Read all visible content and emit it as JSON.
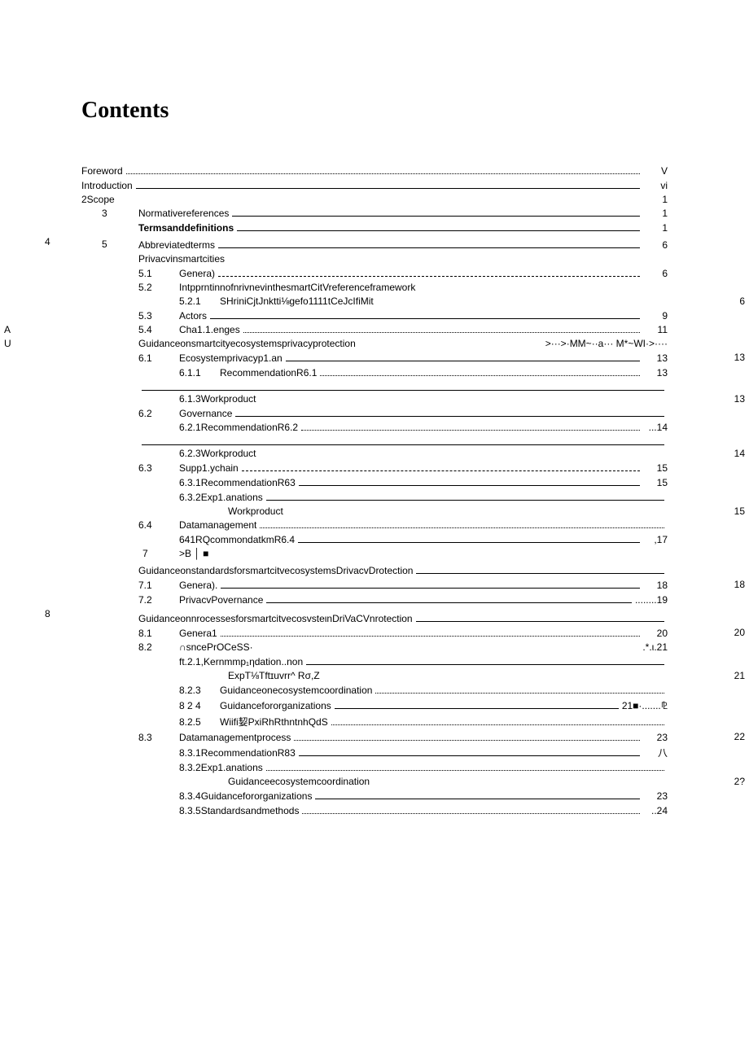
{
  "title": "Contents",
  "lines": [
    {
      "label": "Foreword",
      "leader": "dots",
      "page": "V",
      "indent": 0,
      "leftCol": ""
    },
    {
      "label": "Introduction",
      "leader": "underscore",
      "page": "vi",
      "indent": 0,
      "leftCol": ""
    },
    {
      "label": "2Scope",
      "leader": "none",
      "page": "1",
      "indent": 0,
      "leftCol": ""
    },
    {
      "leftNum": "3",
      "label": "Normativereferences",
      "leader": "underscore",
      "page": "1",
      "indent": 1
    },
    {
      "leftNum": "",
      "label": "Termsanddefinitions",
      "leader": "underscore",
      "page": "1",
      "indent": 1,
      "bold": true
    },
    {
      "leftNum": "4",
      "label": "",
      "leader": "none",
      "page": "",
      "indent": 0
    },
    {
      "leftNum": "5",
      "label": "Abbreviatedterms",
      "leader": "underscore",
      "page": "6",
      "indent": 1
    },
    {
      "leftNum": "",
      "label": "Privacvinsmartcities",
      "leader": "none",
      "page": "",
      "indent": 1
    },
    {
      "leftNum": "",
      "sec": "5.1",
      "label": "Genera)",
      "leader": "dash",
      "page": "6",
      "indent": 2
    },
    {
      "leftNum": "",
      "sec": "5.2",
      "label": "IntpprntinnofnrivnevinthesmartCitVreferenceframework",
      "leader": "none",
      "page": "",
      "indent": 2,
      "farPage": "6"
    },
    {
      "leftNum": "",
      "sec": "5.2.1",
      "label": "SHriniCjtJnktti⅛gefo1111tCeJcIfiMit",
      "leader": "none",
      "page": "",
      "indent": 3
    },
    {
      "leftNum": "",
      "sec": "5.3",
      "label": "Actors",
      "leader": "underscore",
      "page": "9",
      "indent": 2
    },
    {
      "leftNum": "",
      "sec": "5.4",
      "label": "Cha1.1.enges",
      "leader": "dots",
      "page": "11",
      "indent": 2,
      "sideText": "A"
    },
    {
      "leftNum": "",
      "label": "Guidanceonsmartcityecosystemsprivacyprotection",
      "leader": "none",
      "page": ">···>·MM~··a··· M*~WI·>····",
      "indent": 1,
      "farPage": "13",
      "sideText": "U"
    },
    {
      "leftNum": "",
      "sec": "6.1",
      "label": "Ecosystemprivacyp1.an",
      "leader": "underscore",
      "page": "13",
      "indent": 2
    },
    {
      "leftNum": "",
      "sec": "6.1.1",
      "label": "RecommendationR6.1",
      "leader": "dots",
      "page": "13",
      "indent": 3
    },
    {
      "leftNum": "",
      "label": "",
      "leader": "underscore",
      "page": "",
      "indent": 1,
      "farPage": "13"
    },
    {
      "leftNum": "",
      "label": "6.1.3Workproduct",
      "leader": "none",
      "page": "",
      "indent": 3
    },
    {
      "leftNum": "",
      "sec": "6.2",
      "label": "Governance",
      "leader": "underscore",
      "page": "",
      "indent": 2
    },
    {
      "leftNum": "",
      "label": "6.2.1RecommendationR6.2",
      "leader": "dots",
      "page": "...14",
      "indent": 3
    },
    {
      "leftNum": "",
      "label": "",
      "leader": "underscore",
      "page": "",
      "indent": 1,
      "farPage": "14"
    },
    {
      "leftNum": "",
      "label": "6.2.3Workproduct",
      "leader": "none",
      "page": "",
      "indent": 3
    },
    {
      "leftNum": "",
      "sec": "6.3",
      "label": "Supp1.ychain",
      "leader": "dash",
      "page": "15",
      "indent": 2
    },
    {
      "leftNum": "",
      "label": "6.3.1RecommendationR63",
      "leader": "underscore",
      "page": "15",
      "indent": 3
    },
    {
      "leftNum": "",
      "label": "6.3.2Exp1.anations",
      "leader": "underscore",
      "page": "",
      "indent": 3,
      "farPage": "15"
    },
    {
      "leftNum": "",
      "label": "Workproduct",
      "leader": "none",
      "page": "",
      "indent": 4
    },
    {
      "leftNum": "",
      "sec": "6.4",
      "label": "Datamanagement",
      "leader": "dots",
      "page": "",
      "indent": 2
    },
    {
      "leftNum": "",
      "label": "641RQcommondatkmR6.4",
      "leader": "underscore",
      "page": ",17",
      "indent": 3
    },
    {
      "leftNum": "7",
      "label": ">B │ ■",
      "leader": "none",
      "page": "",
      "indent": 3
    },
    {
      "leftNum": "",
      "label": "",
      "leader": "none",
      "page": "",
      "indent": 0
    },
    {
      "leftNum": "",
      "label": "GuidanceonstandardsforsmartcitvecosystemsDrivacvDrotection",
      "leader": "underscore",
      "page": "",
      "indent": 1,
      "farPage": "18"
    },
    {
      "leftNum": "",
      "sec": "7.1",
      "label": "Genera).",
      "leader": "underscore",
      "page": "18",
      "indent": 2
    },
    {
      "leftNum": "",
      "sec": "7.2",
      "label": "PrivacvPovernance",
      "leader": "underscore",
      "page": "........19",
      "indent": 2
    },
    {
      "leftNum": "8",
      "label": "",
      "leader": "none",
      "page": "",
      "indent": 0
    },
    {
      "leftNum": "",
      "label": "",
      "leader": "none",
      "page": "",
      "indent": 0
    },
    {
      "leftNum": "",
      "label": "GuidanceonnrocessesforsmartcitvecosvsteιnDriVaCVnrotection",
      "leader": "underscore",
      "page": "",
      "indent": 1,
      "farPage": "20"
    },
    {
      "leftNum": "",
      "sec": "8.1",
      "label": "Genera1",
      "leader": "dots",
      "page": "20",
      "indent": 2
    },
    {
      "leftNum": "",
      "sec": "8.2",
      "label": "     ∩sncePrOCeSS·",
      "leader": "none",
      "page": ".*.ι.21       ",
      "indent": 2
    },
    {
      "leftNum": "",
      "label": "ft.2.1,Kernmmp₁ηdation..non",
      "leader": "underscore",
      "page": "",
      "indent": 3,
      "farPage": "21"
    },
    {
      "leftNum": "",
      "label": "ExpT⅛Tftɪuvrr^               Rσ,Z",
      "leader": "none",
      "page": "",
      "indent": 4
    },
    {
      "leftNum": "",
      "sec": "8.2.3",
      "label": "Guidanceonecosystemcoordination",
      "leader": "dots",
      "page": "",
      "indent": 3
    },
    {
      "leftNum": "",
      "sec": "8 2 4",
      "label": "Guidancefororganizations",
      "leader": "underscore",
      "page": "21■·.......⅊",
      "indent": 3
    },
    {
      "leftNum": "",
      "sec": "8.2.5",
      "label": "Wiifi㛃PxiRhRthntnhQdS",
      "leader": "dots",
      "page": "",
      "indent": 3,
      "farPage": "22"
    },
    {
      "leftNum": "",
      "sec": "8.3",
      "label": "Datamanagementprocess",
      "leader": "dots",
      "page": "23",
      "indent": 2
    },
    {
      "leftNum": "",
      "label": "8.3.1RecommendationR83",
      "leader": "underscore",
      "page": "八",
      "indent": 3
    },
    {
      "leftNum": "",
      "label": "8.3.2Exp1.anations",
      "leader": "dots",
      "page": "",
      "indent": 3,
      "farPage": "2?"
    },
    {
      "leftNum": "",
      "label": "Guidanceecosystemcoordination",
      "leader": "none",
      "page": "",
      "indent": 4
    },
    {
      "leftNum": "",
      "label": "8.3.4Guidancefororganizations",
      "leader": "underscore",
      "page": "23",
      "indent": 3
    },
    {
      "leftNum": "",
      "label": "8.3.5Standardsandmethods",
      "leader": "dots",
      "page": "..24",
      "indent": 3
    }
  ]
}
